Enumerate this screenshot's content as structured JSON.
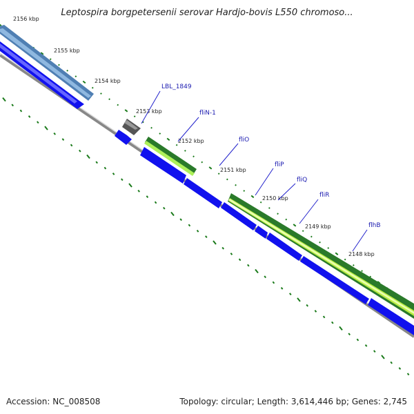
{
  "title": "Leptospira borgpetersenii serovar Hardjo-bovis L550 chromoso...",
  "footer": {
    "accession": "Accession: NC_008508",
    "summary": "Topology: circular; Length: 3,614,446 bp; Genes: 2,745"
  },
  "ticks": [
    "2156 kbp",
    "2155 kbp",
    "2154 kbp",
    "2153 kbp",
    "2152 kbp",
    "2151 kbp",
    "2150 kbp",
    "2149 kbp",
    "2148 kbp"
  ],
  "genes": [
    "LBL_1849",
    "fliN-1",
    "fliO",
    "fliP",
    "fliQ",
    "fliR",
    "flhB"
  ],
  "colors": {
    "cds": "#1111ee",
    "gene_upper": "#2a7a2a",
    "gene_lower": "#bbee44",
    "hypothetical": "#5a6e95",
    "backbone": "#888888",
    "tick": "#1a7a1a"
  }
}
